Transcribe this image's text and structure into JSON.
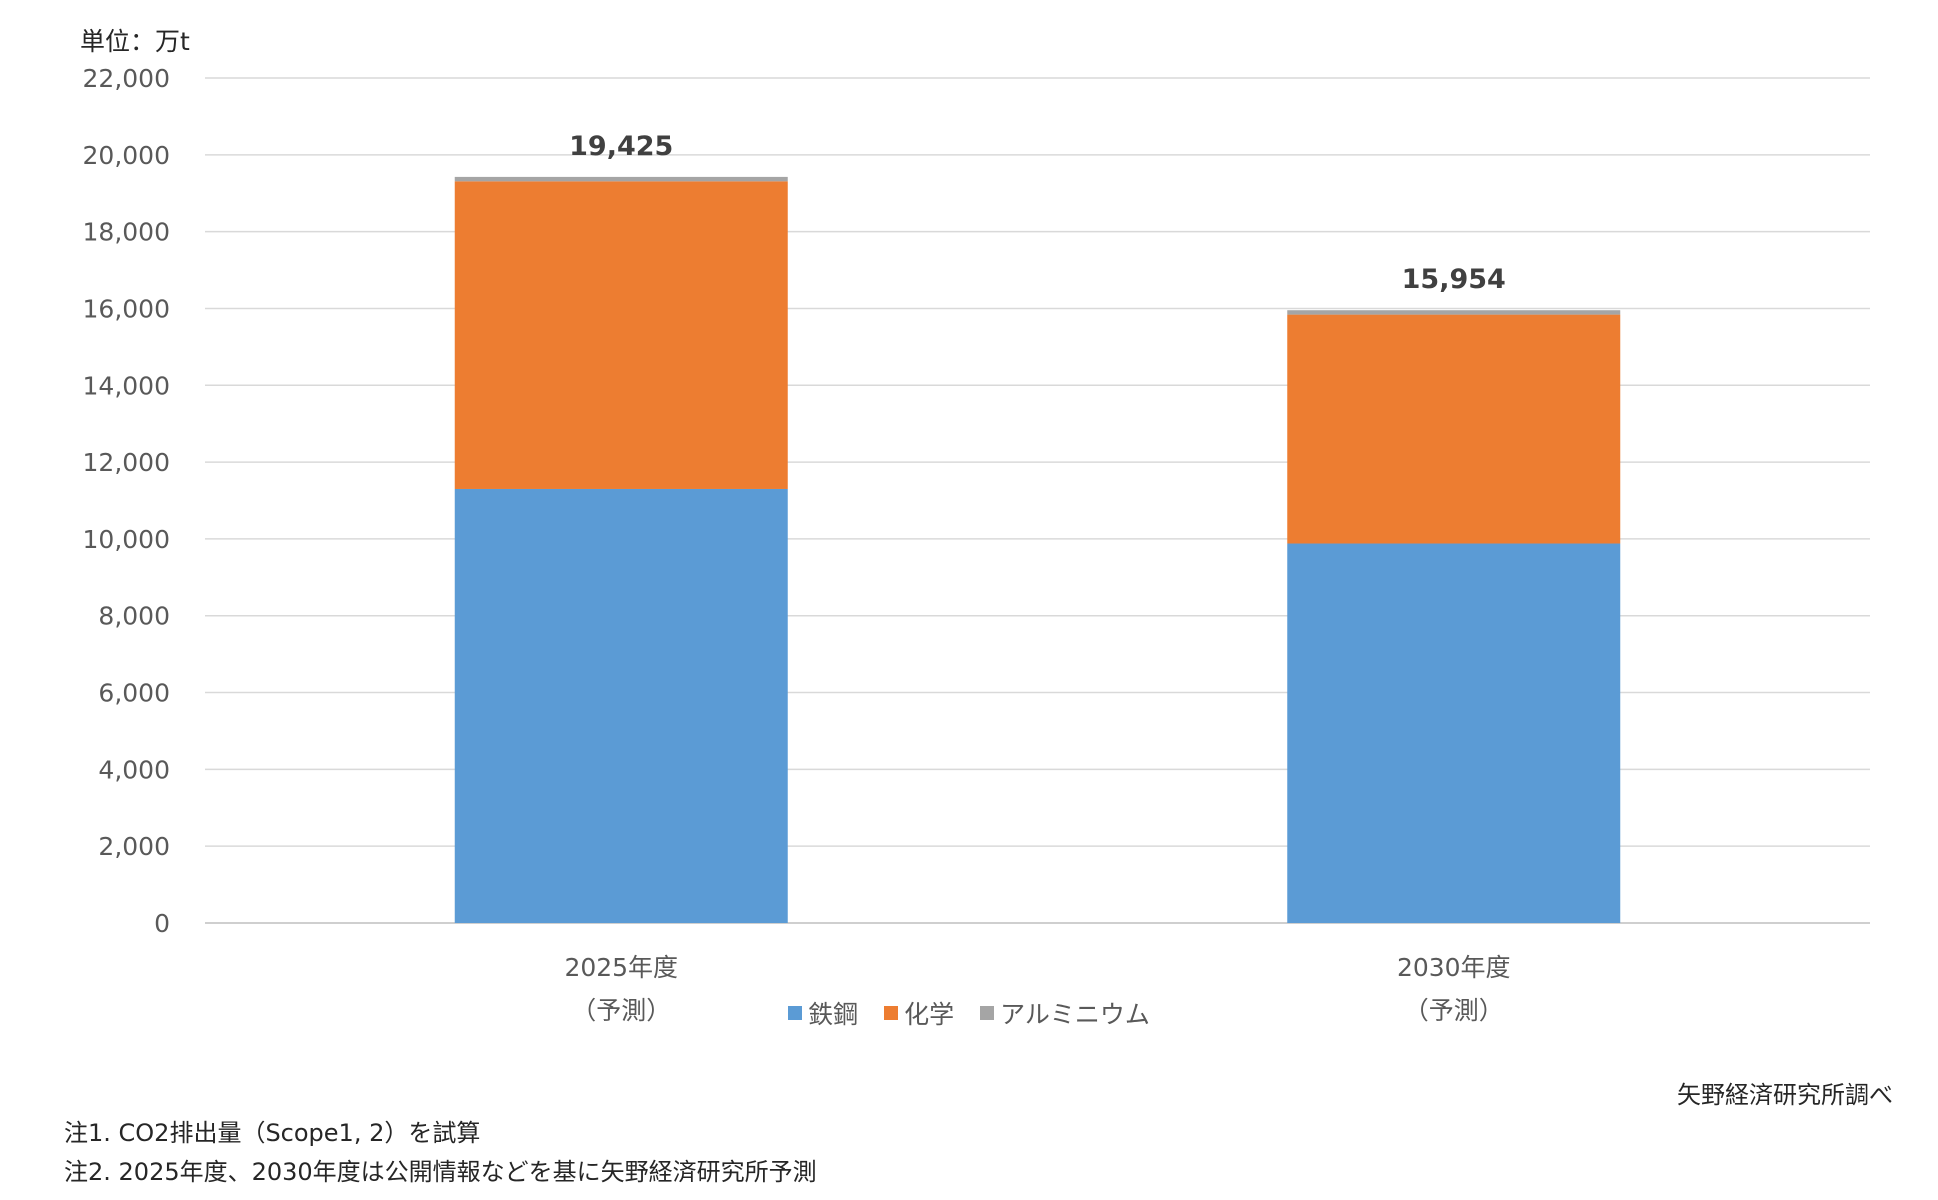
{
  "unit_label": "単位：万t",
  "source_label": "矢野経済研究所調べ",
  "notes": [
    "注1. CO2排出量（Scope1, 2）を試算",
    "注2. 2025年度、2030年度は公開情報などを基に矢野経済研究所予測"
  ],
  "chart_data": {
    "type": "bar",
    "stacked": true,
    "categories": [
      "2025年度",
      "2030年度"
    ],
    "category_sublabels": [
      "（予測）",
      "（予測）"
    ],
    "series": [
      {
        "name": "鉄鋼",
        "values": [
          11300,
          9880
        ],
        "color": "#5b9bd5"
      },
      {
        "name": "化学",
        "values": [
          8010,
          5960
        ],
        "color": "#ed7d31"
      },
      {
        "name": "アルミニウム",
        "values": [
          115,
          114
        ],
        "color": "#a5a5a5"
      }
    ],
    "totals": [
      19425,
      15954
    ],
    "total_labels": [
      "19,425",
      "15,954"
    ],
    "ylim": [
      0,
      22000
    ],
    "yticks": [
      0,
      2000,
      4000,
      6000,
      8000,
      10000,
      12000,
      14000,
      16000,
      18000,
      20000,
      22000
    ],
    "ytick_labels": [
      "0",
      "2,000",
      "4,000",
      "6,000",
      "8,000",
      "10,000",
      "12,000",
      "14,000",
      "16,000",
      "18,000",
      "20,000",
      "22,000"
    ],
    "grid": true,
    "legend_position": "bottom"
  }
}
